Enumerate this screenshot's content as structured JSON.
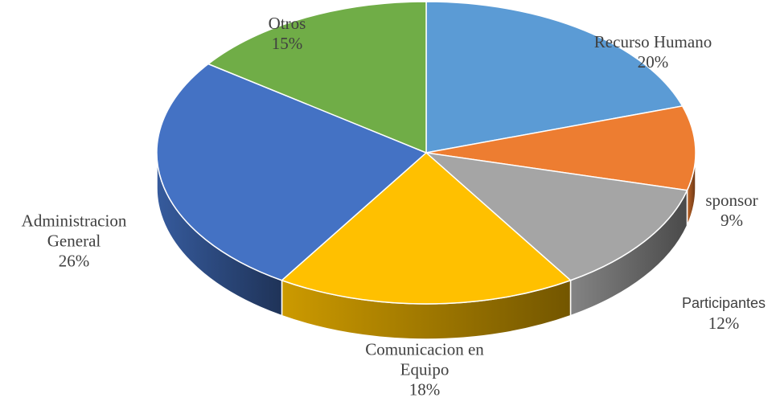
{
  "chart_data": {
    "type": "pie",
    "categories": [
      "Recurso Humano",
      "sponsor",
      "Participantes",
      "Comunicacion en Equipo",
      "Administracion General",
      "Otros"
    ],
    "values": [
      20,
      9,
      12,
      18,
      26,
      15
    ],
    "value_labels": [
      "20%",
      "9%",
      "12%",
      "18%",
      "26%",
      "15%"
    ],
    "colors": [
      "#5b9bd5",
      "#ed7d31",
      "#a5a5a5",
      "#ffc000",
      "#4472c4",
      "#70ad47"
    ]
  }
}
